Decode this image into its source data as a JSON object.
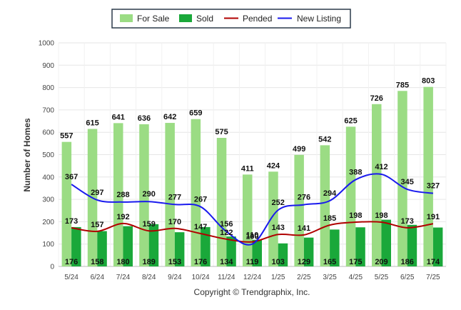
{
  "colors": {
    "for_sale": "#9bdc84",
    "sold": "#1aa83a",
    "pended": "#b00000",
    "new_listing": "#1a1aee",
    "grid": "#e6e6e6"
  },
  "copyright": "Copyright © Trendgraphix, Inc.",
  "chart_data": {
    "type": "bar",
    "title": "",
    "xlabel": "",
    "ylabel": "Number of Homes",
    "ylim": [
      0,
      1000
    ],
    "yticks": [
      "0",
      "100",
      "200",
      "300",
      "400",
      "500",
      "600",
      "700",
      "800",
      "900",
      "1000"
    ],
    "grid": true,
    "legend": "top-center",
    "categories": [
      "5/24",
      "6/24",
      "7/24",
      "8/24",
      "9/24",
      "10/24",
      "11/24",
      "12/24",
      "1/25",
      "2/25",
      "3/25",
      "4/25",
      "5/25",
      "6/25",
      "7/25"
    ],
    "series": [
      {
        "name": "For Sale",
        "kind": "bar",
        "values": [
          557,
          615,
          641,
          636,
          642,
          659,
          575,
          411,
          424,
          499,
          542,
          625,
          726,
          785,
          803
        ]
      },
      {
        "name": "Sold",
        "kind": "bar",
        "values": [
          176,
          158,
          180,
          189,
          153,
          176,
          134,
          119,
          103,
          129,
          165,
          175,
          209,
          186,
          174
        ]
      },
      {
        "name": "Pended",
        "kind": "line",
        "values": [
          173,
          157,
          192,
          159,
          170,
          147,
          122,
          110,
          143,
          141,
          185,
          198,
          198,
          173,
          191
        ]
      },
      {
        "name": "New Listing",
        "kind": "line",
        "values": [
          367,
          297,
          288,
          290,
          277,
          267,
          156,
          100,
          252,
          276,
          294,
          388,
          412,
          345,
          327
        ]
      }
    ]
  }
}
